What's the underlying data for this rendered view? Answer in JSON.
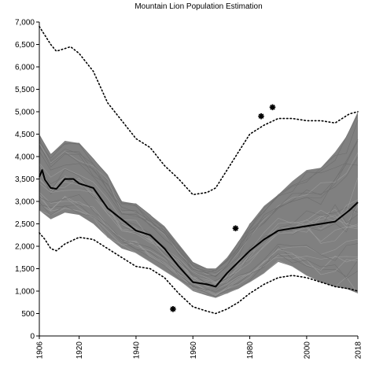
{
  "chart_data": {
    "type": "line",
    "title": "Mountain Lion Population Estimation",
    "xlabel": "",
    "ylabel": "",
    "xlim": [
      1906,
      2018
    ],
    "ylim": [
      0,
      7000
    ],
    "x_ticks": [
      "1906",
      "1920",
      "1940",
      "1960",
      "1980",
      "2000",
      "2018"
    ],
    "y_ticks": [
      "0",
      "500",
      "1,000",
      "1,500",
      "2,000",
      "2,500",
      "3,000",
      "3,500",
      "4,000",
      "4,500",
      "5,000",
      "5,500",
      "6,000",
      "6,500",
      "7,000"
    ],
    "grid": false,
    "legend": "none",
    "series": [
      {
        "style": "simulation-band",
        "color": "#808080",
        "x": [
          1906,
          1910,
          1915,
          1920,
          1925,
          1930,
          1935,
          1940,
          1945,
          1950,
          1955,
          1960,
          1965,
          1968,
          1972,
          1976,
          1980,
          1985,
          1990,
          1995,
          2000,
          2005,
          2010,
          2014,
          2018
        ],
        "lower": [
          2800,
          2600,
          2750,
          2700,
          2500,
          2200,
          1950,
          1850,
          1650,
          1450,
          1250,
          1000,
          900,
          850,
          950,
          1050,
          1200,
          1400,
          1650,
          1550,
          1350,
          1200,
          1100,
          1050,
          950
        ],
        "upper": [
          4500,
          4050,
          4350,
          4300,
          3950,
          3600,
          3000,
          2950,
          2700,
          2450,
          2050,
          1650,
          1500,
          1500,
          1750,
          2100,
          2500,
          2900,
          3150,
          3450,
          3700,
          3750,
          4100,
          4450,
          5000
        ]
      },
      {
        "style": "solid",
        "color": "#000000",
        "x": [
          1906,
          1907,
          1908,
          1910,
          1912,
          1915,
          1918,
          1920,
          1925,
          1930,
          1935,
          1940,
          1945,
          1950,
          1955,
          1960,
          1965,
          1968,
          1972,
          1976,
          1980,
          1985,
          1990,
          1995,
          2000,
          2005,
          2010,
          2015,
          2018
        ],
        "y": [
          3550,
          3700,
          3480,
          3300,
          3280,
          3500,
          3500,
          3400,
          3300,
          2850,
          2600,
          2350,
          2250,
          1950,
          1550,
          1200,
          1150,
          1100,
          1400,
          1650,
          1900,
          2150,
          2350,
          2400,
          2450,
          2500,
          2550,
          2800,
          2980
        ]
      },
      {
        "style": "dotted",
        "color": "#000000",
        "x": [
          1906,
          1910,
          1912,
          1917,
          1920,
          1925,
          1930,
          1935,
          1940,
          1945,
          1950,
          1955,
          1960,
          1965,
          1968,
          1972,
          1976,
          1980,
          1985,
          1990,
          1995,
          2000,
          2005,
          2010,
          2015,
          2018
        ],
        "y": [
          6900,
          6500,
          6350,
          6450,
          6300,
          5900,
          5200,
          4800,
          4400,
          4200,
          3800,
          3500,
          3150,
          3200,
          3300,
          3700,
          4100,
          4500,
          4700,
          4850,
          4850,
          4800,
          4800,
          4750,
          4950,
          5000
        ]
      },
      {
        "style": "dotted",
        "color": "#000000",
        "x": [
          1906,
          1908,
          1910,
          1912,
          1915,
          1920,
          1925,
          1930,
          1935,
          1940,
          1945,
          1950,
          1955,
          1960,
          1965,
          1968,
          1972,
          1976,
          1980,
          1985,
          1990,
          1995,
          2000,
          2005,
          2010,
          2015,
          2018
        ],
        "y": [
          2300,
          2150,
          1950,
          1900,
          2050,
          2200,
          2150,
          1950,
          1750,
          1550,
          1500,
          1300,
          950,
          650,
          550,
          500,
          600,
          750,
          950,
          1150,
          1300,
          1350,
          1300,
          1200,
          1100,
          1050,
          1000
        ]
      },
      {
        "style": "asterisk-points",
        "color": "#000000",
        "x": [
          1953,
          1975,
          1984,
          1988
        ],
        "y": [
          600,
          2400,
          4900,
          5100
        ]
      }
    ]
  }
}
